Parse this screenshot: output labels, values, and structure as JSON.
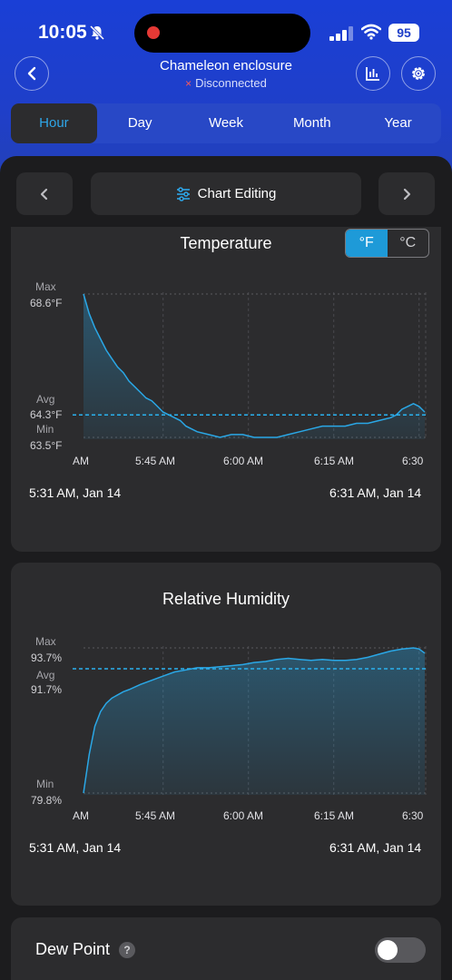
{
  "status": {
    "time": "10:05",
    "battery": "95",
    "icons": [
      "bell-slash-icon",
      "signal-icon",
      "wifi-icon",
      "battery-icon"
    ]
  },
  "header": {
    "title": "Chameleon enclosure",
    "status_text": "Disconnected",
    "status_icon": "×"
  },
  "tabs": [
    {
      "label": "Hour",
      "active": true
    },
    {
      "label": "Day",
      "active": false
    },
    {
      "label": "Week",
      "active": false
    },
    {
      "label": "Month",
      "active": false
    },
    {
      "label": "Year",
      "active": false
    }
  ],
  "toolbar": {
    "edit_label": "Chart Editing"
  },
  "temperature": {
    "title": "Temperature",
    "unit_f": "°F",
    "unit_c": "°C",
    "max_label": "Max",
    "max_value": "68.6°F",
    "avg_label": "Avg",
    "avg_value": "64.3°F",
    "min_label": "Min",
    "min_value": "63.5°F",
    "x_ticks": [
      "AM",
      "5:45 AM",
      "6:00 AM",
      "6:15 AM",
      "6:30"
    ],
    "range_start": "5:31 AM,  Jan 14",
    "range_end": "6:31 AM,  Jan 14"
  },
  "humidity": {
    "title": "Relative Humidity",
    "max_label": "Max",
    "max_value": "93.7%",
    "avg_label": "Avg",
    "avg_value": "91.7%",
    "min_label": "Min",
    "min_value": "79.8%",
    "x_ticks": [
      "AM",
      "5:45 AM",
      "6:00 AM",
      "6:15 AM",
      "6:30"
    ],
    "range_start": "5:31 AM,  Jan 14",
    "range_end": "6:31 AM,  Jan 14"
  },
  "dew_point": {
    "label": "Dew Point",
    "help": "?",
    "enabled": false
  },
  "colors": {
    "accent": "#1e9ad8",
    "line": "#2aa7e6",
    "header": "#1f3fc9"
  },
  "chart_data": [
    {
      "type": "area",
      "x_unit": "minutes after 5:31 AM",
      "ylim": [
        63.5,
        68.6
      ],
      "avg": 64.3,
      "x": [
        0,
        1,
        2,
        3,
        4,
        5,
        6,
        7,
        8,
        9,
        10,
        11,
        12,
        13,
        14,
        15,
        16,
        17,
        18,
        20,
        22,
        24,
        26,
        28,
        30,
        32,
        34,
        36,
        38,
        40,
        42,
        44,
        46,
        48,
        50,
        52,
        54,
        55,
        56,
        57,
        58,
        59,
        60
      ],
      "series": [
        {
          "values": [
            68.6,
            67.9,
            67.4,
            67.0,
            66.6,
            66.3,
            66.0,
            65.8,
            65.5,
            65.3,
            65.1,
            64.9,
            64.8,
            64.6,
            64.4,
            64.3,
            64.2,
            64.1,
            63.9,
            63.7,
            63.6,
            63.5,
            63.6,
            63.6,
            63.5,
            63.5,
            63.5,
            63.6,
            63.7,
            63.8,
            63.9,
            63.9,
            63.9,
            64.0,
            64.0,
            64.1,
            64.2,
            64.3,
            64.5,
            64.6,
            64.7,
            64.6,
            64.4
          ]
        }
      ]
    },
    {
      "type": "area",
      "x_unit": "minutes after 5:31 AM",
      "ylim": [
        79.8,
        93.7
      ],
      "avg": 91.7,
      "x": [
        0,
        1,
        2,
        3,
        4,
        5,
        6,
        7,
        8,
        10,
        12,
        14,
        16,
        18,
        20,
        22,
        24,
        26,
        28,
        30,
        32,
        34,
        36,
        38,
        40,
        42,
        44,
        46,
        48,
        50,
        52,
        54,
        56,
        58,
        59,
        60
      ],
      "series": [
        {
          "values": [
            79.8,
            83.5,
            86.2,
            87.6,
            88.4,
            88.9,
            89.2,
            89.5,
            89.7,
            90.2,
            90.6,
            91.0,
            91.4,
            91.6,
            91.8,
            91.8,
            91.9,
            92.0,
            92.1,
            92.3,
            92.4,
            92.6,
            92.7,
            92.6,
            92.5,
            92.6,
            92.5,
            92.5,
            92.6,
            92.8,
            93.1,
            93.4,
            93.6,
            93.7,
            93.6,
            93.2
          ]
        }
      ]
    }
  ]
}
